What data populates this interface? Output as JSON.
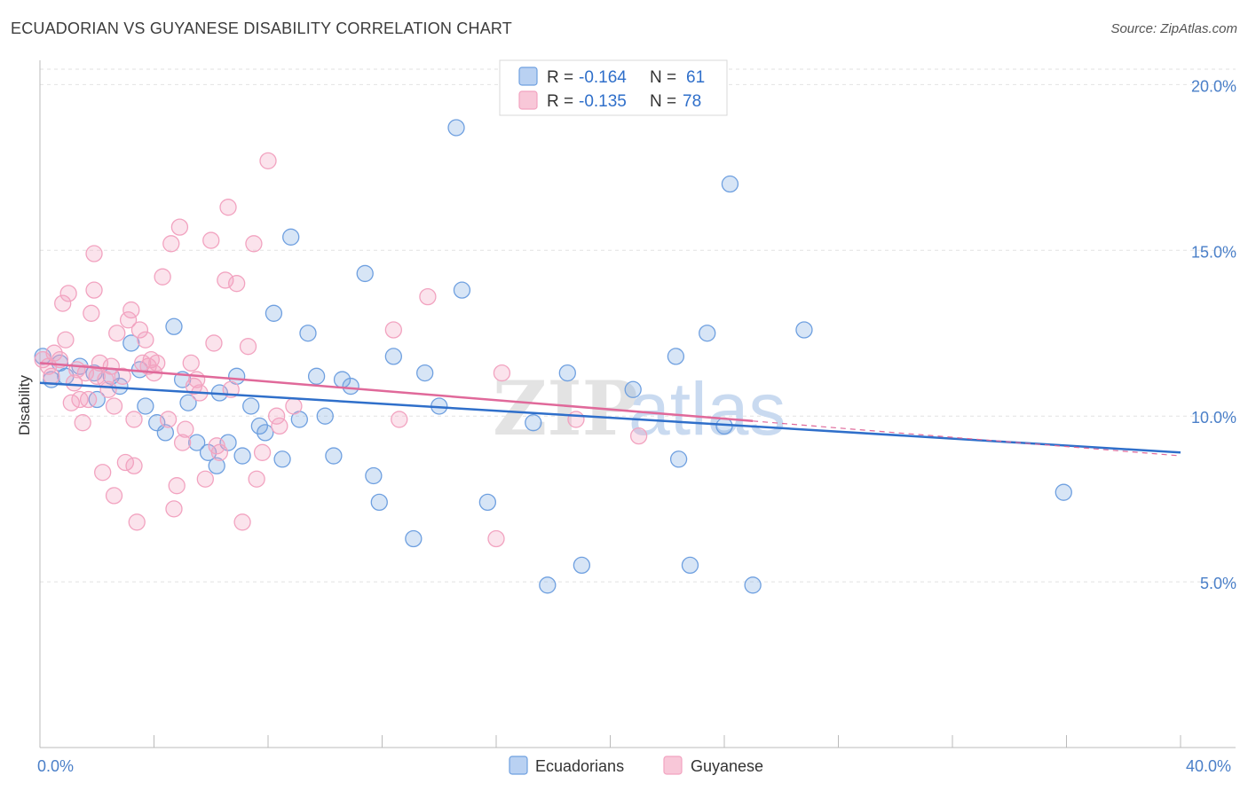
{
  "title": "ECUADORIAN VS GUYANESE DISABILITY CORRELATION CHART",
  "source": "Source: ZipAtlas.com",
  "chart_data": {
    "type": "scatter",
    "ylabel": "Disability",
    "xlim": [
      0,
      40
    ],
    "ylim": [
      0,
      21
    ],
    "y_ticks": [
      {
        "value": 5,
        "label": "5.0%"
      },
      {
        "value": 10,
        "label": "10.0%"
      },
      {
        "value": 15,
        "label": "15.0%"
      },
      {
        "value": 20,
        "label": "20.0%"
      }
    ],
    "x_tick_labels": {
      "left": "0.0%",
      "right": "40.0%"
    },
    "grid": true,
    "legend_position": "top-center",
    "watermark": {
      "zip": "ZIP",
      "atlas": "atlas"
    },
    "series": [
      {
        "name": "Ecuadorians",
        "color": "#6fa0e0",
        "line_color": "#2f6fca",
        "legend": {
          "r_label": "R = ",
          "r_value": "-0.164",
          "n_label": "N = ",
          "n_value": "61"
        },
        "trend": {
          "x0": 0,
          "y0": 11.0,
          "x1": 40,
          "y1": 8.9,
          "dash_from": null
        },
        "points": [
          [
            0.1,
            11.8
          ],
          [
            0.4,
            11.1
          ],
          [
            0.9,
            11.2
          ],
          [
            1.4,
            11.5
          ],
          [
            1.9,
            11.3
          ],
          [
            2.5,
            11.2
          ],
          [
            2.8,
            10.9
          ],
          [
            3.2,
            12.2
          ],
          [
            3.5,
            11.4
          ],
          [
            3.7,
            10.3
          ],
          [
            4.1,
            9.8
          ],
          [
            4.4,
            9.5
          ],
          [
            4.7,
            12.7
          ],
          [
            5.0,
            11.1
          ],
          [
            5.2,
            10.4
          ],
          [
            5.5,
            9.2
          ],
          [
            5.9,
            8.9
          ],
          [
            6.2,
            8.5
          ],
          [
            6.6,
            9.2
          ],
          [
            6.9,
            11.2
          ],
          [
            7.1,
            8.8
          ],
          [
            7.4,
            10.3
          ],
          [
            7.7,
            9.7
          ],
          [
            7.9,
            9.5
          ],
          [
            8.2,
            13.1
          ],
          [
            8.5,
            8.7
          ],
          [
            8.8,
            15.4
          ],
          [
            9.1,
            9.9
          ],
          [
            9.4,
            12.5
          ],
          [
            9.7,
            11.2
          ],
          [
            10.0,
            10.0
          ],
          [
            10.3,
            8.8
          ],
          [
            10.6,
            11.1
          ],
          [
            10.9,
            10.9
          ],
          [
            11.4,
            14.3
          ],
          [
            11.7,
            8.2
          ],
          [
            11.9,
            7.4
          ],
          [
            12.4,
            11.8
          ],
          [
            13.1,
            6.3
          ],
          [
            13.5,
            11.3
          ],
          [
            14.0,
            10.3
          ],
          [
            14.6,
            18.7
          ],
          [
            14.8,
            13.8
          ],
          [
            15.7,
            7.4
          ],
          [
            17.3,
            9.8
          ],
          [
            17.8,
            4.9
          ],
          [
            18.5,
            11.3
          ],
          [
            19.0,
            5.5
          ],
          [
            20.8,
            10.8
          ],
          [
            22.3,
            11.8
          ],
          [
            22.4,
            8.7
          ],
          [
            22.8,
            5.5
          ],
          [
            23.4,
            12.5
          ],
          [
            24.0,
            9.7
          ],
          [
            24.2,
            17.0
          ],
          [
            25.0,
            4.9
          ],
          [
            26.8,
            12.6
          ],
          [
            35.9,
            7.7
          ],
          [
            0.7,
            11.6
          ],
          [
            2.0,
            10.5
          ],
          [
            6.3,
            10.7
          ]
        ]
      },
      {
        "name": "Guyanese",
        "color": "#f2a3c0",
        "line_color": "#e0699a",
        "legend": {
          "r_label": "R = ",
          "r_value": "-0.135",
          "n_label": "N = ",
          "n_value": "78"
        },
        "trend": {
          "x0": 0,
          "y0": 11.6,
          "x1": 40,
          "y1": 8.8,
          "dash_from": 25
        },
        "points": [
          [
            0.1,
            11.7
          ],
          [
            0.3,
            11.5
          ],
          [
            0.5,
            11.9
          ],
          [
            0.7,
            11.7
          ],
          [
            0.8,
            13.4
          ],
          [
            0.9,
            12.3
          ],
          [
            1.0,
            13.7
          ],
          [
            1.1,
            10.4
          ],
          [
            1.2,
            11.0
          ],
          [
            1.4,
            10.5
          ],
          [
            1.5,
            9.8
          ],
          [
            1.7,
            10.5
          ],
          [
            1.8,
            13.1
          ],
          [
            1.9,
            13.8
          ],
          [
            1.9,
            14.9
          ],
          [
            2.0,
            11.2
          ],
          [
            2.1,
            11.6
          ],
          [
            2.2,
            8.3
          ],
          [
            2.3,
            11.1
          ],
          [
            2.4,
            10.8
          ],
          [
            2.5,
            11.5
          ],
          [
            2.6,
            10.3
          ],
          [
            2.6,
            7.6
          ],
          [
            2.7,
            12.5
          ],
          [
            2.9,
            11.2
          ],
          [
            3.0,
            8.6
          ],
          [
            3.1,
            12.9
          ],
          [
            3.2,
            13.2
          ],
          [
            3.3,
            8.5
          ],
          [
            3.4,
            6.8
          ],
          [
            3.5,
            12.6
          ],
          [
            3.6,
            11.6
          ],
          [
            3.7,
            12.3
          ],
          [
            3.8,
            11.5
          ],
          [
            3.9,
            11.7
          ],
          [
            4.0,
            11.3
          ],
          [
            4.3,
            14.2
          ],
          [
            4.5,
            9.9
          ],
          [
            4.6,
            15.2
          ],
          [
            4.7,
            7.2
          ],
          [
            4.8,
            7.9
          ],
          [
            4.9,
            15.7
          ],
          [
            5.0,
            9.2
          ],
          [
            5.1,
            9.6
          ],
          [
            5.3,
            11.6
          ],
          [
            5.4,
            10.9
          ],
          [
            5.5,
            11.1
          ],
          [
            5.6,
            10.7
          ],
          [
            5.8,
            8.1
          ],
          [
            6.0,
            15.3
          ],
          [
            6.1,
            12.2
          ],
          [
            6.2,
            9.1
          ],
          [
            6.3,
            8.9
          ],
          [
            6.5,
            14.1
          ],
          [
            6.6,
            16.3
          ],
          [
            6.7,
            10.8
          ],
          [
            6.9,
            14.0
          ],
          [
            7.1,
            6.8
          ],
          [
            7.3,
            12.1
          ],
          [
            7.5,
            15.2
          ],
          [
            7.6,
            8.1
          ],
          [
            7.8,
            8.9
          ],
          [
            8.0,
            17.7
          ],
          [
            8.3,
            10.0
          ],
          [
            8.4,
            9.7
          ],
          [
            8.9,
            10.3
          ],
          [
            12.4,
            12.6
          ],
          [
            12.6,
            9.9
          ],
          [
            13.6,
            13.6
          ],
          [
            16.0,
            6.3
          ],
          [
            16.2,
            11.3
          ],
          [
            18.8,
            9.9
          ],
          [
            21.0,
            9.4
          ],
          [
            1.6,
            11.3
          ],
          [
            3.3,
            9.9
          ],
          [
            4.1,
            11.6
          ],
          [
            1.3,
            11.4
          ],
          [
            0.4,
            11.2
          ]
        ]
      }
    ]
  }
}
